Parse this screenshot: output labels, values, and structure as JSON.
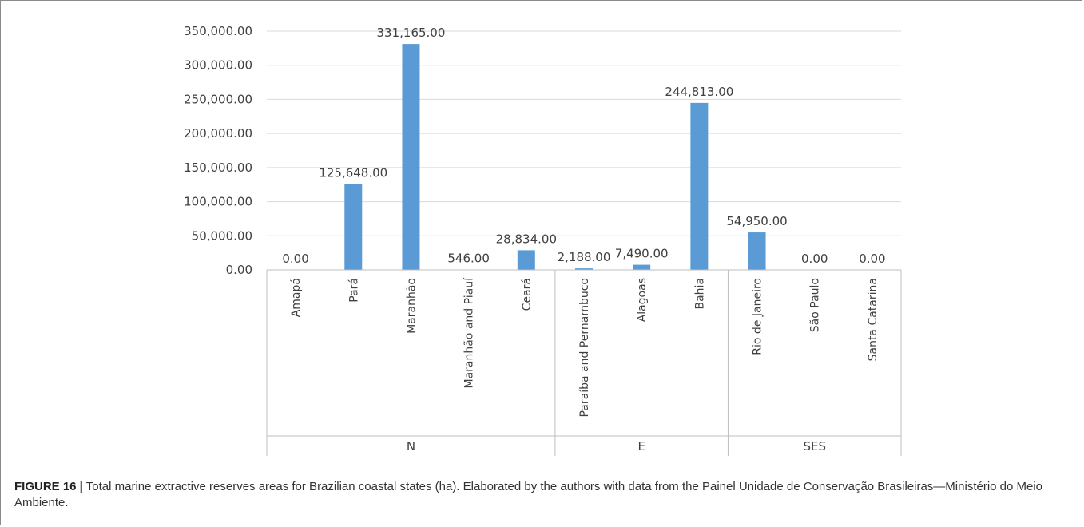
{
  "chart_data": {
    "type": "bar",
    "categories": [
      "Amapá",
      "Pará",
      "Maranhão",
      "Maranhão and Piauí",
      "Ceará",
      "Paraíba and Pernambuco",
      "Alagoas",
      "Bahia",
      "Rio de Janeiro",
      "São Paulo",
      "Santa Catarina"
    ],
    "values": [
      0,
      125648,
      331165,
      546,
      28834,
      2188,
      7490,
      244813,
      54950,
      0,
      0
    ],
    "data_labels": [
      "0.00",
      "125,648.00",
      "331,165.00",
      "546.00",
      "28,834.00",
      "2,188.00",
      "7,490.00",
      "244,813.00",
      "54,950.00",
      "0.00",
      "0.00"
    ],
    "groups": [
      {
        "name": "N",
        "count": 5
      },
      {
        "name": "E",
        "count": 3
      },
      {
        "name": "SES",
        "count": 3
      }
    ],
    "ylim": [
      0,
      350000
    ],
    "yticks": [
      0,
      50000,
      100000,
      150000,
      200000,
      250000,
      300000,
      350000
    ],
    "ytick_labels": [
      "0.00",
      "50,000.00",
      "100,000.00",
      "150,000.00",
      "200,000.00",
      "250,000.00",
      "300,000.00",
      "350,000.00"
    ],
    "grid": true,
    "bar_color": "#5b9bd5",
    "title": "",
    "xlabel": "",
    "ylabel": ""
  },
  "caption": {
    "label": "FIGURE 16 |",
    "text": " Total marine extractive reserves areas for Brazilian coastal states (ha). Elaborated by the authors with data from the Painel Unidade de Conservação Brasileiras—Ministério do Meio Ambiente."
  }
}
